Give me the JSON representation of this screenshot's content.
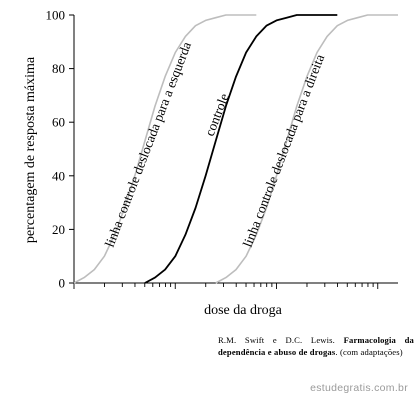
{
  "chart_data": {
    "type": "line",
    "title": "",
    "xlabel": "dose da droga",
    "ylabel": "percentagem de resposta máxima",
    "ylim": [
      0,
      100
    ],
    "yticks": [
      0,
      20,
      40,
      60,
      80,
      100
    ],
    "x_scale": "log",
    "grid": false,
    "series": [
      {
        "name": "linha controle deslocada para a esquerda",
        "color": "#bdbdbd",
        "x": [
          0.3,
          0.4,
          0.5,
          0.6,
          0.7,
          0.8,
          0.9,
          1.0,
          1.1,
          1.2,
          1.3,
          1.4,
          1.5,
          1.6,
          1.7,
          1.8,
          1.9,
          2.0,
          2.1
        ],
        "y": [
          0,
          2,
          5,
          10,
          18,
          28,
          40,
          53,
          66,
          77,
          86,
          92,
          96,
          98,
          99,
          100,
          100,
          100,
          100
        ]
      },
      {
        "name": "controle",
        "color": "#000000",
        "x": [
          1.0,
          1.1,
          1.2,
          1.3,
          1.4,
          1.5,
          1.6,
          1.7,
          1.8,
          1.9,
          2.0,
          2.1,
          2.2,
          2.3,
          2.4,
          2.5,
          2.6,
          2.7,
          2.8,
          2.9
        ],
        "y": [
          0,
          2,
          5,
          10,
          18,
          28,
          40,
          53,
          66,
          77,
          86,
          92,
          96,
          98,
          99,
          100,
          100,
          100,
          100,
          100
        ]
      },
      {
        "name": "linha controle deslocada para a direita",
        "color": "#bdbdbd",
        "x": [
          1.7,
          1.8,
          1.9,
          2.0,
          2.1,
          2.2,
          2.3,
          2.4,
          2.5,
          2.6,
          2.7,
          2.8,
          2.9,
          3.0,
          3.1,
          3.2,
          3.3,
          3.4,
          3.5
        ],
        "y": [
          0,
          2,
          5,
          10,
          18,
          28,
          40,
          53,
          66,
          77,
          86,
          92,
          96,
          98,
          99,
          100,
          100,
          100,
          100
        ]
      }
    ]
  },
  "citation": {
    "authors": "R.M. Swift e D.C. Lewis.",
    "title": "Farmacologia da dependência e abuso de drogas",
    "note": ". (com adaptações)"
  },
  "watermark": "estudegratis.com.br"
}
